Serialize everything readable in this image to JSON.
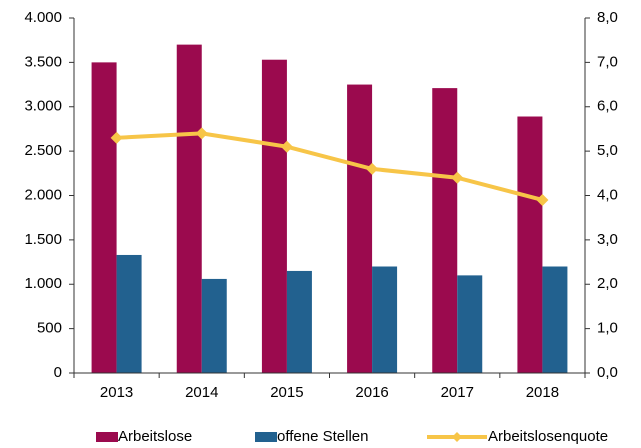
{
  "chart_data": {
    "type": "bar",
    "categories": [
      "2013",
      "2014",
      "2015",
      "2016",
      "2017",
      "2018"
    ],
    "series": [
      {
        "name": "Arbeitslose",
        "color": "#9b0a4e",
        "values": [
          3500,
          3700,
          3530,
          3250,
          3210,
          2890
        ]
      },
      {
        "name": "offene Stellen",
        "color": "#22618f",
        "values": [
          1330,
          1060,
          1150,
          1200,
          1100,
          1200
        ]
      },
      {
        "name": "Arbeitslosenquote",
        "color": "#f7c548",
        "type": "line",
        "axis": "y2",
        "values": [
          5.3,
          5.4,
          5.1,
          4.6,
          4.4,
          3.9
        ]
      }
    ],
    "ylim": [
      0,
      4000
    ],
    "yticks": [
      0,
      500,
      {
        "value": 1000,
        "label": "1.000"
      },
      {
        "value": 1500,
        "label": "1.500"
      },
      {
        "value": 2000,
        "label": "2.000"
      },
      {
        "value": 2500,
        "label": "2.500"
      },
      {
        "value": 3000,
        "label": "3.000"
      },
      {
        "value": 3500,
        "label": "3.500"
      },
      {
        "value": 4000,
        "label": "4.000"
      }
    ],
    "y2lim": [
      0,
      8
    ],
    "y2ticks": [
      {
        "value": 0,
        "label": "0,0"
      },
      {
        "value": 1,
        "label": "1,0"
      },
      {
        "value": 2,
        "label": "2,0"
      },
      {
        "value": 3,
        "label": "3,0"
      },
      {
        "value": 4,
        "label": "4,0"
      },
      {
        "value": 5,
        "label": "5,0"
      },
      {
        "value": 6,
        "label": "6,0"
      },
      {
        "value": 7,
        "label": "7,0"
      },
      {
        "value": 8,
        "label": "8,0"
      }
    ],
    "grid": false,
    "legend": "bottom"
  }
}
